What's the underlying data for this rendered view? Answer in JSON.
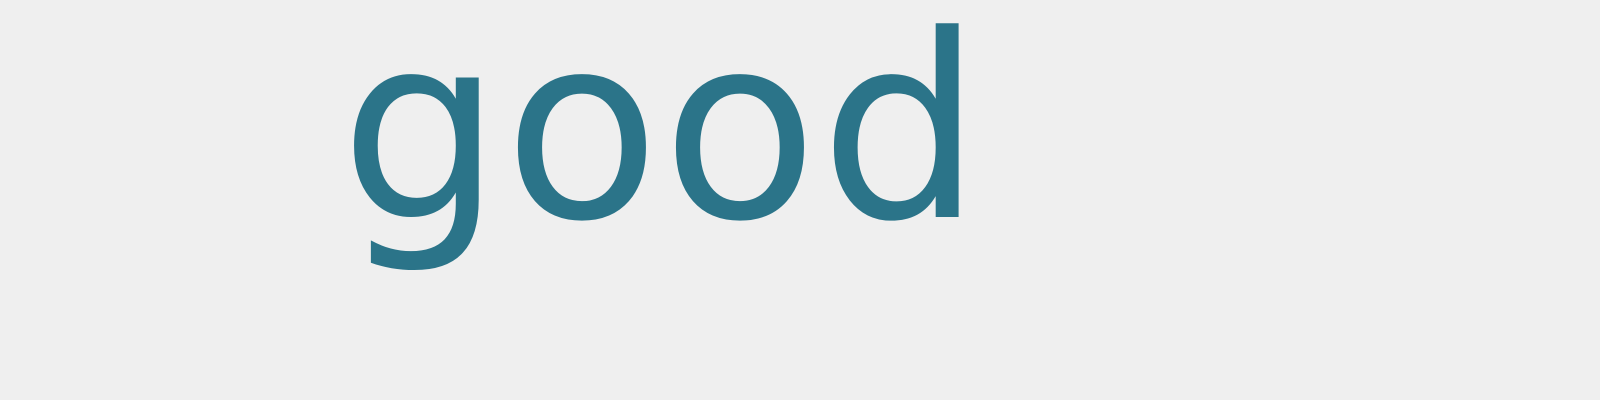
{
  "text": "good",
  "colors": {
    "background": "#efefef",
    "text": "#2b7489"
  }
}
